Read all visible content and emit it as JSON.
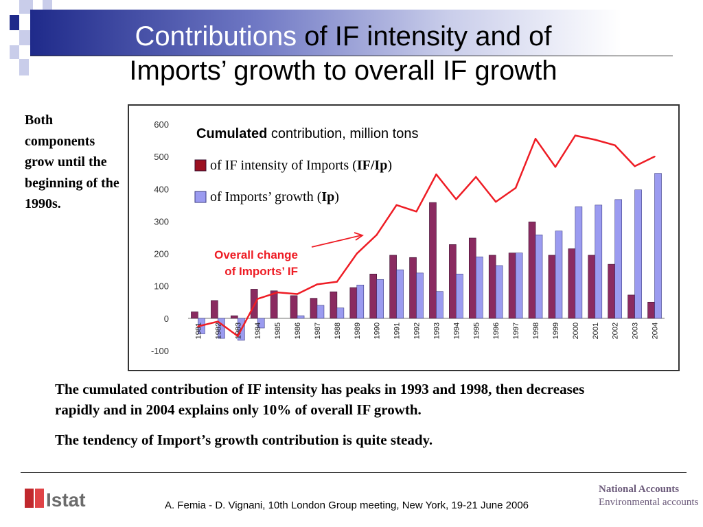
{
  "colors": {
    "intensity_bar": "#8a2b60",
    "imports_bar": "#9b9bf0",
    "overall_line": "#ee1c24",
    "annotation": "#ee1c24",
    "band_dark": "#1f2a8a"
  },
  "header": {
    "title_white": "Contributions",
    "title_black_1": " of IF intensity and of",
    "title_black_2": "Imports’ growth to overall IF growth"
  },
  "side_note": "Both components grow until the beginning of the 1990s.",
  "chart_data": {
    "type": "bar",
    "title_bold": "Cumulated",
    "title_rest": " contribution, million tons",
    "categories": [
      "1981",
      "1982",
      "1983",
      "1984",
      "1985",
      "1986",
      "1987",
      "1988",
      "1989",
      "1990",
      "1991",
      "1992",
      "1993",
      "1994",
      "1995",
      "1996",
      "1997",
      "1998",
      "1999",
      "2000",
      "2001",
      "2002",
      "2003",
      "2004"
    ],
    "series": [
      {
        "name": "of IF intensity of Imports (IF/Ip)",
        "kind": "bar",
        "color": "#8a2b60",
        "values": [
          20,
          55,
          8,
          90,
          85,
          70,
          62,
          82,
          95,
          137,
          195,
          188,
          358,
          228,
          248,
          195,
          202,
          298,
          195,
          215,
          195,
          167,
          72,
          50
        ]
      },
      {
        "name": "of Imports’ growth (Ip)",
        "kind": "bar",
        "color": "#9b9bf0",
        "values": [
          -48,
          -62,
          -68,
          -30,
          0,
          8,
          40,
          32,
          103,
          120,
          150,
          140,
          83,
          137,
          190,
          163,
          202,
          258,
          270,
          345,
          350,
          367,
          397,
          448
        ]
      },
      {
        "name": "Overall change of Imports’ IF",
        "kind": "line",
        "color": "#ee1c24",
        "values": [
          -25,
          -10,
          -55,
          60,
          80,
          75,
          105,
          113,
          200,
          258,
          350,
          330,
          445,
          368,
          437,
          360,
          403,
          555,
          468,
          565,
          552,
          535,
          470,
          500
        ]
      }
    ],
    "legend": [
      {
        "pre": "of IF intensity of Imports (",
        "bold": "IF/Ip",
        "post": ")"
      },
      {
        "pre": "of Imports’ growth (",
        "bold": "Ip",
        "post": ")"
      }
    ],
    "annotation": [
      "Overall change",
      "of Imports’ IF"
    ],
    "yticks": [
      600,
      500,
      400,
      300,
      200,
      100,
      0,
      -100
    ],
    "ylim": [
      -100,
      600
    ],
    "grid": false,
    "legend_position": "top-left"
  },
  "caption": {
    "p1": "The cumulated contribution of IF intensity has peaks in 1993 and 1998, then decreases rapidly and in 2004 explains only 10% of overall IF growth.",
    "p2": "The tendency of  Import’s growth contribution is quite steady."
  },
  "footer": {
    "logo_text": "Istat",
    "citation": "A. Femia - D. Vignani, 10th London Group meeting, New York, 19-21 June 2006",
    "corner_bold": "National Accounts",
    "corner_rest": "Environmental accounts"
  }
}
